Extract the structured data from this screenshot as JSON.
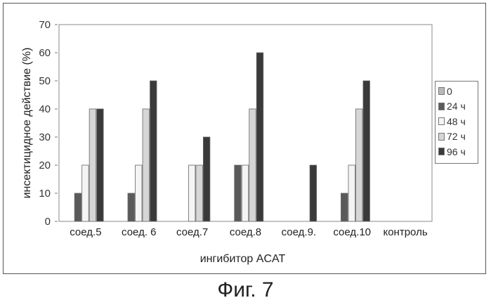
{
  "figure_caption": "Фиг. 7",
  "chart_data": {
    "type": "bar",
    "title": "",
    "xlabel": "ингибитор ACAT",
    "ylabel": "инсектицидное действие (%)",
    "ylim": [
      0,
      70
    ],
    "yticks": [
      0,
      10,
      20,
      30,
      40,
      50,
      60,
      70
    ],
    "grid": false,
    "legend_position": "right",
    "categories": [
      "соед.5",
      "соед. 6",
      "соед.7",
      "соед.8",
      "соед.9.",
      "соед.10",
      "контроль"
    ],
    "series": [
      {
        "name": "0",
        "color": "#b8b8b8",
        "values": [
          0,
          0,
          0,
          0,
          0,
          0,
          0
        ]
      },
      {
        "name": "24 ч",
        "color": "#5a5a5a",
        "values": [
          10,
          10,
          0,
          20,
          0,
          10,
          0
        ]
      },
      {
        "name": "48 ч",
        "color": "#f4f4f4",
        "values": [
          20,
          20,
          20,
          20,
          0,
          20,
          0
        ]
      },
      {
        "name": "72 ч",
        "color": "#d6d6d6",
        "values": [
          40,
          40,
          20,
          40,
          0,
          40,
          0
        ]
      },
      {
        "name": "96 ч",
        "color": "#3a3a3a",
        "values": [
          40,
          50,
          30,
          60,
          20,
          50,
          0
        ]
      }
    ]
  }
}
